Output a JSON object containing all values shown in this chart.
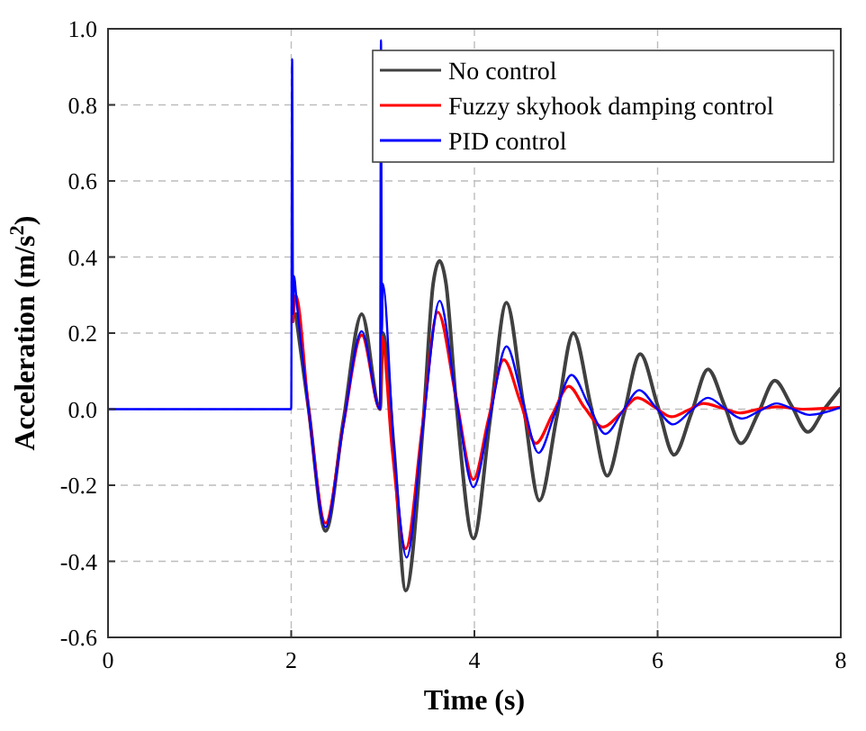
{
  "chart_data": {
    "type": "line",
    "xlabel": "Time (s)",
    "ylabel": "Acceleration (m/s$^{2}$)",
    "xlim": [
      0,
      8
    ],
    "ylim": [
      -0.6,
      1.0
    ],
    "xticks": [
      0,
      2,
      4,
      6,
      8
    ],
    "yticks": [
      {
        "value": -0.6,
        "label": "-0.6"
      },
      {
        "value": -0.4,
        "label": "-0.4"
      },
      {
        "value": -0.2,
        "label": "-0.2"
      },
      {
        "value": 0,
        "label": "0.0"
      },
      {
        "value": 0.2,
        "label": "0.2"
      },
      {
        "value": 0.4,
        "label": "0.4"
      },
      {
        "value": 0.6,
        "label": "0.6"
      },
      {
        "value": 0.8,
        "label": "0.8"
      },
      {
        "value": 1.0,
        "label": "1.0"
      }
    ],
    "grid": true,
    "legend": "top right",
    "line_style": "solid",
    "marker": "none",
    "series": [
      {
        "name": "No control",
        "color": "#404040",
        "x": [
          2.05,
          2.19,
          2.375,
          2.57,
          2.77,
          2.97,
          3.0,
          3.12,
          3.25,
          3.44,
          3.55,
          3.62,
          3.69,
          3.8,
          3.99,
          4.17,
          4.35,
          4.53,
          4.71,
          4.9,
          5.08,
          5.27,
          5.45,
          5.63,
          5.81,
          6.0,
          6.18,
          6.37,
          6.55,
          6.73,
          6.91,
          7.1,
          7.28,
          7.46,
          7.64,
          7.82,
          8
        ],
        "values": [
          0.25,
          0,
          -0.32,
          -0.03,
          0.25,
          0,
          0.2,
          -0.1,
          -0.477,
          -0.04,
          0.33,
          0.39,
          0.33,
          0.02,
          -0.34,
          -0.03,
          0.28,
          0.02,
          -0.24,
          -0.02,
          0.2,
          0.01,
          -0.175,
          -0.015,
          0.145,
          0.01,
          -0.12,
          -0.01,
          0.105,
          0.01,
          -0.09,
          -0.01,
          0.075,
          0.01,
          -0.06,
          0,
          0.055
        ]
      },
      {
        "name": "Fuzzy skyhook damping control",
        "color": "#ff0000",
        "x": [
          2.02,
          2.05,
          2.19,
          2.375,
          2.57,
          2.77,
          2.97,
          2.99,
          3.1,
          3.25,
          3.43,
          3.6,
          3.8,
          3.99,
          4.15,
          4.32,
          4.5,
          4.67,
          4.85,
          5.03,
          5.2,
          5.4,
          5.6,
          5.78,
          5.97,
          6.15,
          6.33,
          6.5,
          6.7,
          6.9,
          7.1,
          7.3,
          7.6,
          8
        ],
        "values": [
          0.23,
          0.3,
          0,
          -0.3,
          -0.04,
          0.195,
          0,
          0.19,
          -0.1,
          -0.367,
          -0.05,
          0.255,
          0.03,
          -0.185,
          -0.03,
          0.13,
          0.02,
          -0.09,
          -0.015,
          0.06,
          0.005,
          -0.047,
          -0.01,
          0.03,
          0.005,
          -0.02,
          -0.003,
          0.015,
          0.003,
          -0.01,
          0,
          0.006,
          0,
          0.005
        ]
      },
      {
        "name": "PID control",
        "color": "#0000ff",
        "x": [
          0,
          2,
          2.01,
          2.02,
          2.03,
          2.06,
          2.19,
          2.375,
          2.57,
          2.77,
          2.97,
          2.98,
          2.99,
          3.0,
          3.12,
          3.26,
          3.44,
          3.62,
          3.8,
          3.99,
          4.17,
          4.35,
          4.53,
          4.7,
          4.88,
          5.06,
          5.25,
          5.43,
          5.62,
          5.8,
          5.98,
          6.17,
          6.36,
          6.55,
          6.73,
          6.92,
          7.11,
          7.3,
          7.48,
          7.66,
          8
        ],
        "values": [
          0,
          0,
          0.92,
          0.25,
          0.35,
          0.28,
          0,
          -0.31,
          -0.04,
          0.205,
          0,
          0.97,
          0.2,
          0.33,
          -0.1,
          -0.39,
          -0.04,
          0.285,
          0.03,
          -0.205,
          -0.02,
          0.165,
          0.02,
          -0.115,
          -0.01,
          0.09,
          0.01,
          -0.065,
          -0.005,
          0.05,
          0.005,
          -0.04,
          -0.005,
          0.03,
          0.003,
          -0.025,
          -0.005,
          0.015,
          0,
          -0.015,
          0.005
        ]
      }
    ]
  }
}
